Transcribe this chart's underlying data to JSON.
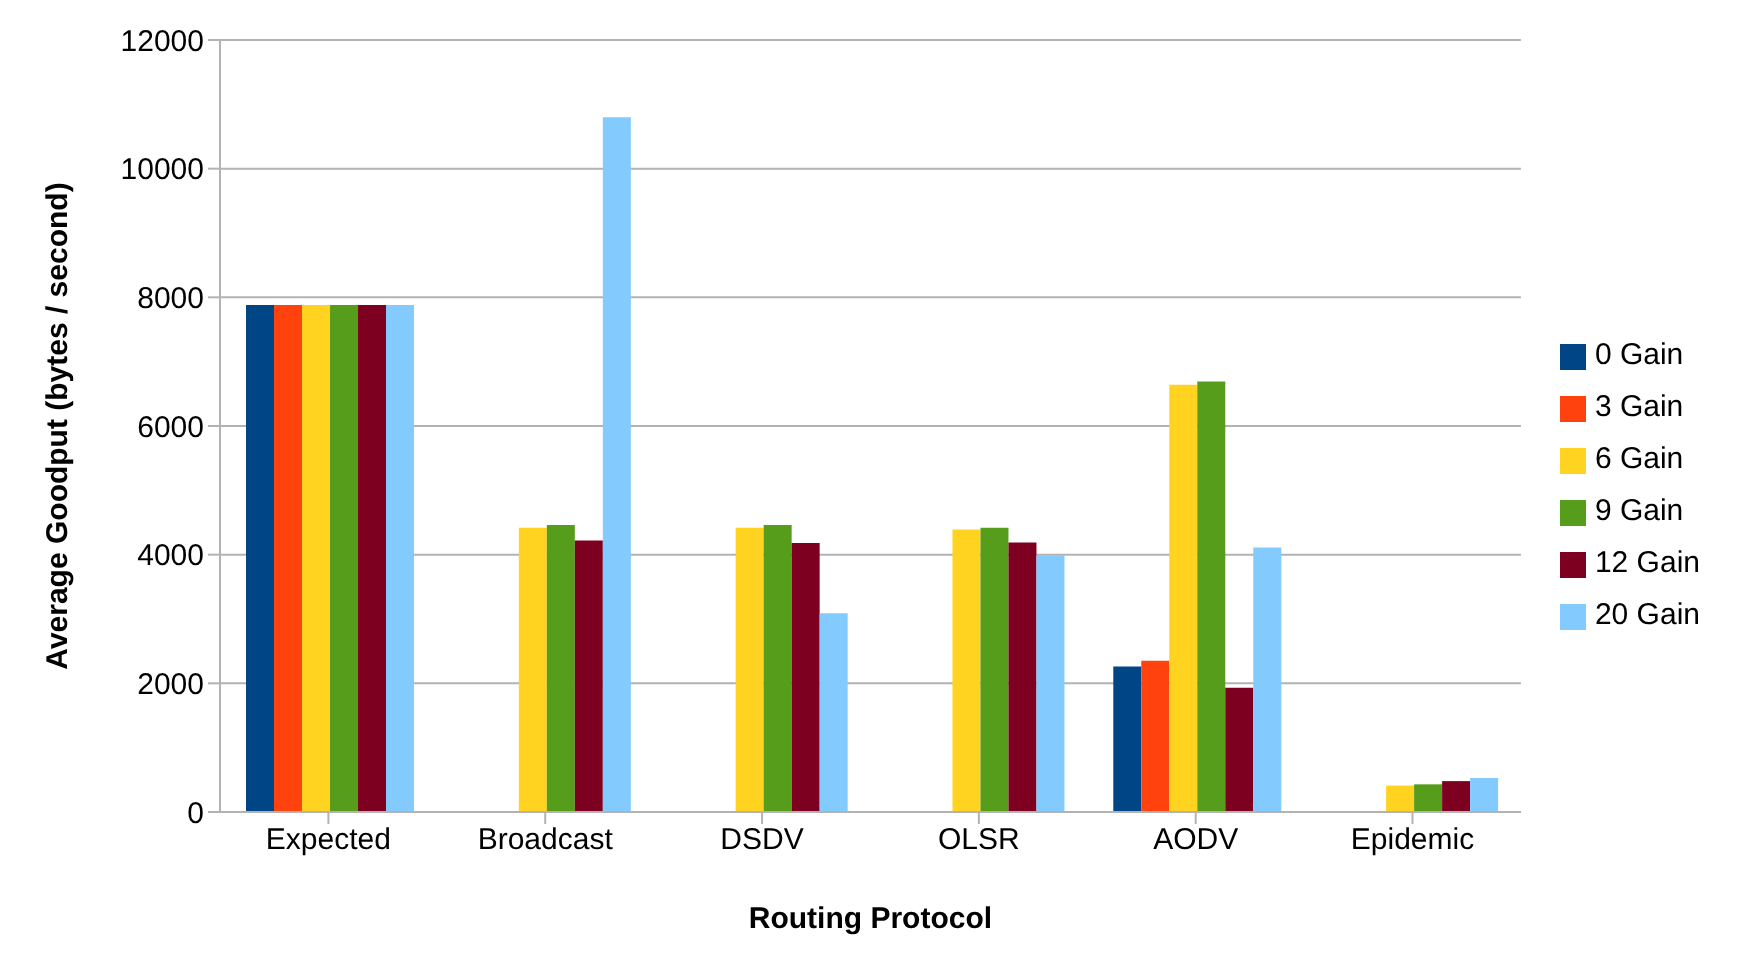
{
  "chart_data": {
    "type": "bar",
    "xlabel": "Routing Protocol",
    "ylabel": "Average Goodput (bytes / second)",
    "categories": [
      "Expected",
      "Broadcast",
      "DSDV",
      "OLSR",
      "AODV",
      "Epidemic"
    ],
    "series": [
      {
        "name": "0 Gain",
        "color": "#004586",
        "values": [
          7880,
          0,
          0,
          0,
          2260,
          0
        ]
      },
      {
        "name": "3 Gain",
        "color": "#ff420e",
        "values": [
          7880,
          0,
          0,
          0,
          2350,
          0
        ]
      },
      {
        "name": "6 Gain",
        "color": "#ffd320",
        "values": [
          7880,
          4420,
          4420,
          4390,
          6640,
          410
        ]
      },
      {
        "name": "9 Gain",
        "color": "#579d1c",
        "values": [
          7880,
          4460,
          4460,
          4420,
          6690,
          430
        ]
      },
      {
        "name": "12 Gain",
        "color": "#7e0021",
        "values": [
          7880,
          4220,
          4180,
          4190,
          1930,
          480
        ]
      },
      {
        "name": "20 Gain",
        "color": "#83caff",
        "values": [
          7880,
          10800,
          3090,
          3990,
          4110,
          530
        ]
      }
    ],
    "ylim": [
      0,
      12000
    ],
    "yticks": [
      0,
      2000,
      4000,
      6000,
      8000,
      10000,
      12000
    ],
    "grid": "y",
    "legend": "right"
  }
}
